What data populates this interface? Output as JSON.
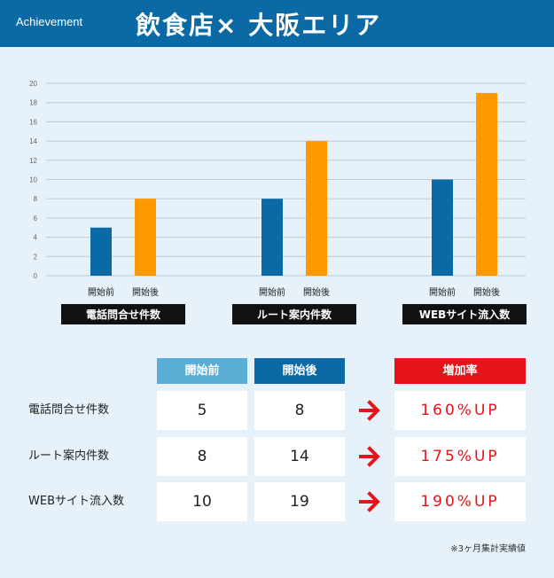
{
  "header": {
    "label": "Achievement",
    "title": "飲食店× 大阪エリア"
  },
  "chart_data": {
    "type": "bar",
    "ylim": [
      0,
      20
    ],
    "yticks": [
      0,
      2,
      4,
      6,
      8,
      10,
      12,
      14,
      16,
      18,
      20
    ],
    "grid": true,
    "groups": [
      {
        "label": "電話問合せ件数",
        "categories": [
          "開始前",
          "開始後"
        ],
        "values": [
          5,
          8
        ]
      },
      {
        "label": "ルート案内件数",
        "categories": [
          "開始前",
          "開始後"
        ],
        "values": [
          8,
          14
        ]
      },
      {
        "label": "WEBサイト流入数",
        "categories": [
          "開始前",
          "開始後"
        ],
        "values": [
          10,
          19
        ]
      }
    ],
    "colors": [
      "#0b6aa5",
      "#ff9900"
    ]
  },
  "table": {
    "headers": {
      "before": "開始前",
      "after": "開始後",
      "rate": "増加率"
    },
    "rows": [
      {
        "label": "電話問合せ件数",
        "before": "5",
        "after": "8",
        "rate": "160%UP"
      },
      {
        "label": "ルート案内件数",
        "before": "8",
        "after": "14",
        "rate": "175%UP"
      },
      {
        "label": "WEBサイト流入数",
        "before": "10",
        "after": "19",
        "rate": "190%UP"
      }
    ],
    "colors": {
      "before_header": "#5aaed6",
      "after_header": "#0b6aa5",
      "rate_header": "#e6131b",
      "arrow": "#e6131b"
    },
    "arrow_icon": "arrow-right-icon"
  },
  "note": "※3ヶ月集計実績値"
}
